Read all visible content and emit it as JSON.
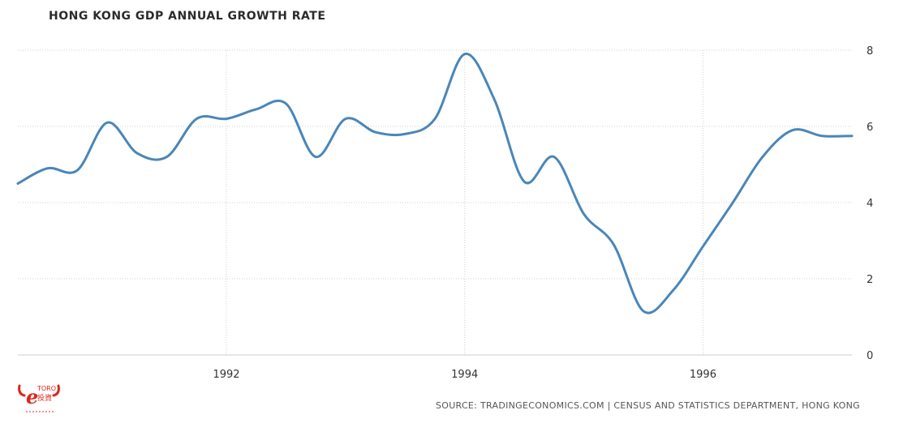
{
  "title": "HONG KONG GDP ANNUAL GROWTH RATE",
  "source": "SOURCE: TRADINGECONOMICS.COM | CENSUS AND STATISTICS DEPARTMENT, HONG KONG",
  "logo": {
    "text": "eToro",
    "subtext": "投資",
    "color": "#d9281f"
  },
  "colors": {
    "line": "#4a86b8",
    "grid": "#cfcfcf",
    "axis": "#cfcfcf",
    "text": "#333333"
  },
  "chart_data": {
    "type": "line",
    "title": "HONG KONG GDP ANNUAL GROWTH RATE",
    "xlabel": "",
    "ylabel": "",
    "xlim": [
      1990.25,
      1997.25
    ],
    "ylim": [
      0,
      8
    ],
    "y_ticks": [
      0,
      2,
      4,
      6,
      8
    ],
    "x_ticks": [
      1992,
      1994,
      1996
    ],
    "grid": true,
    "series": [
      {
        "x": [
          1990.25,
          1990.5,
          1990.75,
          1991.0,
          1991.25,
          1991.5,
          1991.75,
          1992.0,
          1992.25,
          1992.5,
          1992.75,
          1993.0,
          1993.25,
          1993.5,
          1993.75,
          1994.0,
          1994.25,
          1994.5,
          1994.75,
          1995.0,
          1995.25,
          1995.5,
          1995.75,
          1996.0,
          1996.25,
          1996.5,
          1996.75,
          1997.0,
          1997.25
        ],
        "values": [
          4.5,
          4.9,
          4.85,
          6.1,
          5.3,
          5.2,
          6.2,
          6.2,
          6.45,
          6.6,
          5.2,
          6.2,
          5.85,
          5.8,
          6.2,
          7.9,
          6.7,
          4.55,
          5.2,
          3.7,
          2.9,
          1.15,
          1.7,
          2.85,
          4.0,
          5.2,
          5.9,
          5.75,
          5.75
        ]
      }
    ]
  }
}
